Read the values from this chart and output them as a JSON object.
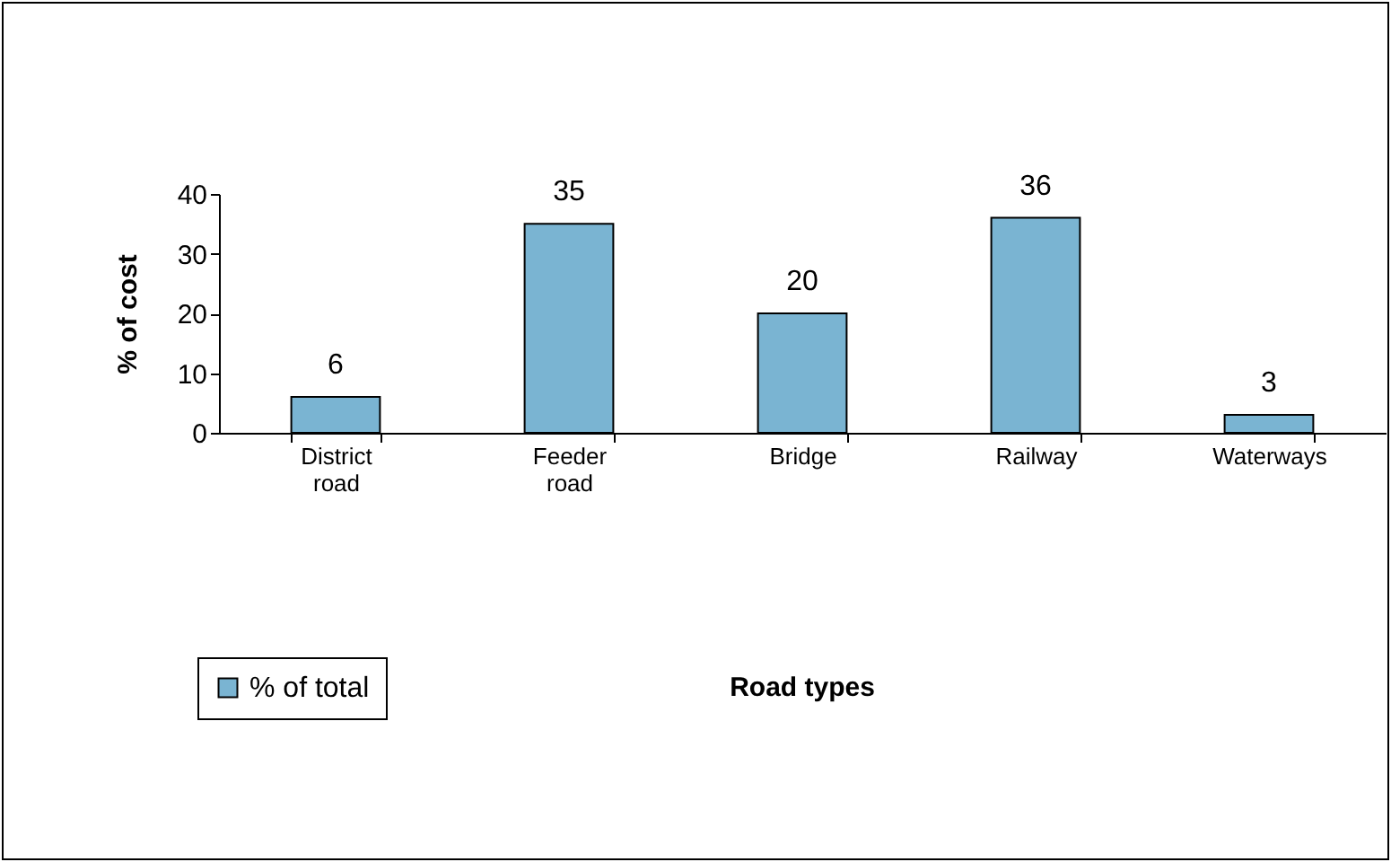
{
  "chart_data": {
    "type": "bar",
    "annotations": [
      "Road types"
    ],
    "ylabel": "% of cost",
    "categories": [
      "District road",
      "Feeder road",
      "Bridge",
      "Railway",
      "Waterways"
    ],
    "series": [
      {
        "name": "% of total",
        "color": "#7ab4d2",
        "values": [
          6,
          35,
          20,
          36,
          3
        ]
      }
    ],
    "ylim": [
      0,
      40
    ],
    "yticks": [
      0,
      10,
      20,
      30,
      40
    ],
    "grid": false,
    "legend": "bottom left",
    "data_labels": true
  }
}
